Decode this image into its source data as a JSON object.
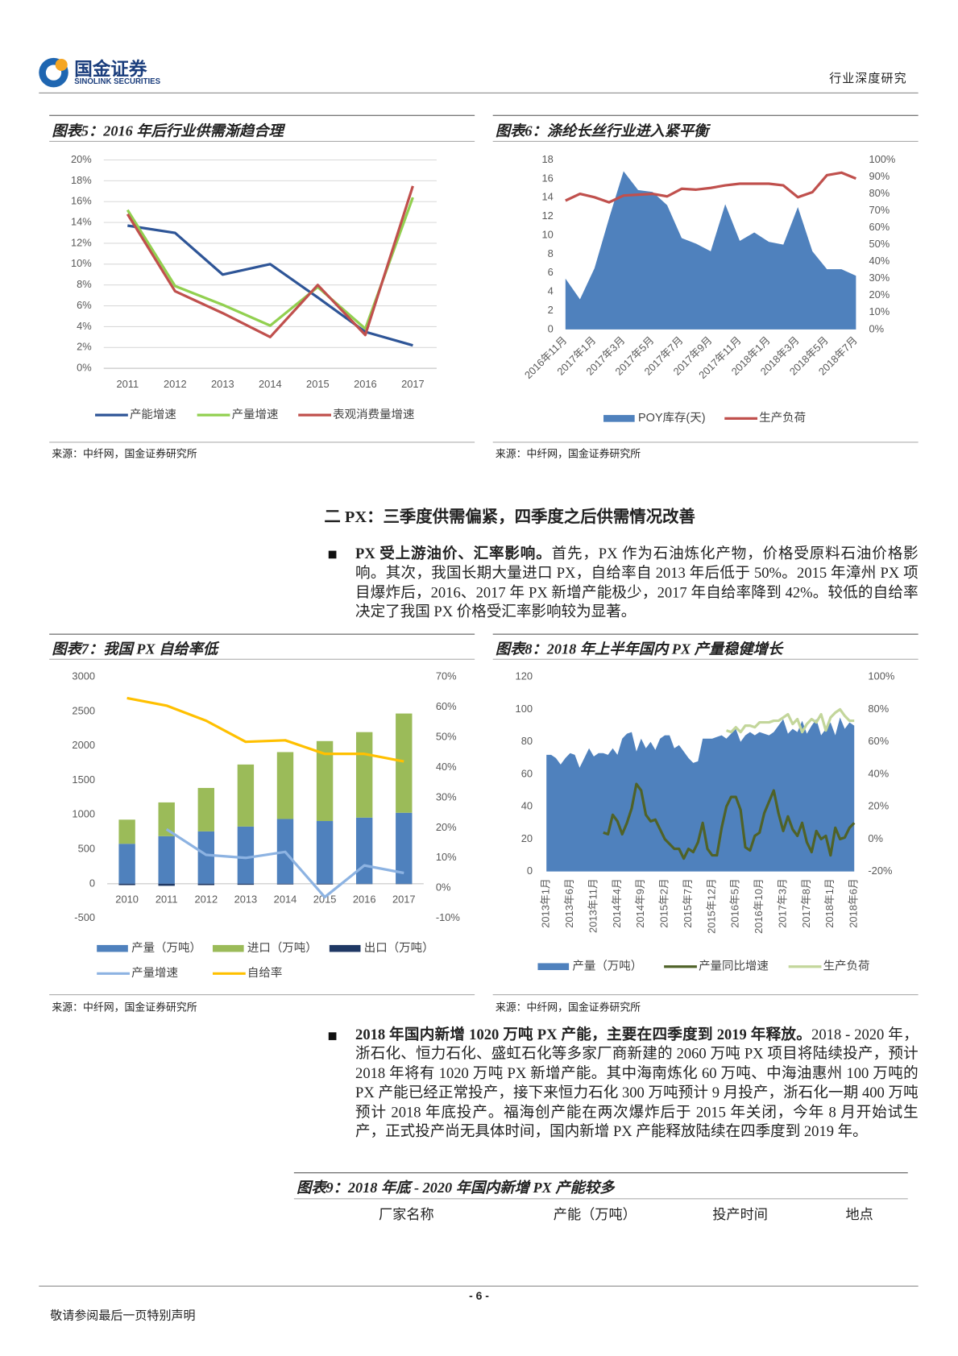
{
  "document": {
    "header": {
      "brand_cn": "国金证券",
      "brand_en": "SINOLINK SECURITIES",
      "category": "行业深度研究"
    },
    "section_title": "二 PX：三季度供需偏紧，四季度之后供需情况改善",
    "paragraphs": [
      {
        "lead": "PX 受上游油价、汇率影响。",
        "text": "首先，PX 作为石油炼化产物，价格受原料石油价格影响。其次，我国长期大量进口 PX，自给率自 2013 年后低于 50%。2015 年漳州 PX 项目爆炸后，2016、2017 年 PX 新增产能极少，2017 年自给率降到 42%。较低的自给率决定了我国 PX 价格受汇率影响较为显著。"
      },
      {
        "lead": "2018 年国内新增 1020 万吨 PX 产能，主要在四季度到 2019 年释放。",
        "text": "2018 - 2020 年，浙石化、恒力石化、盛虹石化等多家厂商新建的 2060 万吨 PX 项目将陆续投产，预计 2018 年将有 1020 万吨 PX 新增产能。其中海南炼化 60 万吨、中海油惠州 100 万吨的 PX 产能已经正常投产，接下来恒力石化 300 万吨预计 9 月投产，浙石化一期 400 万吨预计 2018 年底投产。福海创产能在两次爆炸后于 2015 年关闭，今年 8 月开始试生产，正式投产尚无具体时间，国内新增 PX 产能释放陆续在四季度到 2019 年。"
      }
    ],
    "table": {
      "title": "图表9：2018 年底 - 2020 年国内新增 PX 产能较多",
      "headers": [
        "厂家名称",
        "产能（万吨）",
        "投产时间",
        "地点"
      ]
    },
    "footer": {
      "page": "- 6 -",
      "notice": "敬请参阅最后一页特别声明"
    }
  },
  "chart_data": [
    {
      "type": "line",
      "title": "图表5：2016 年后行业供需渐趋合理",
      "source": "来源：中纤网，国金证券研究所",
      "categories": [
        "2011",
        "2012",
        "2013",
        "2014",
        "2015",
        "2016",
        "2017"
      ],
      "ylim": [
        0,
        20
      ],
      "yticks": [
        {
          "value": 0,
          "label": "0%"
        },
        {
          "value": 2,
          "label": "2%"
        },
        {
          "value": 4,
          "label": "4%"
        },
        {
          "value": 6,
          "label": "6%"
        },
        {
          "value": 8,
          "label": "8%"
        },
        {
          "value": 10,
          "label": "10%"
        },
        {
          "value": 12,
          "label": "12%"
        },
        {
          "value": 14,
          "label": "14%"
        },
        {
          "value": 16,
          "label": "16%"
        },
        {
          "value": 18,
          "label": "18%"
        },
        {
          "value": 20,
          "label": "20%"
        }
      ],
      "grid": true,
      "series": [
        {
          "name": "产能增速",
          "color": "#2e5597",
          "values": [
            13.7,
            13.0,
            9.0,
            10.0,
            6.8,
            3.5,
            2.2
          ]
        },
        {
          "name": "产量增速",
          "color": "#92d050",
          "values": [
            15.2,
            7.9,
            6.1,
            4.1,
            7.8,
            3.8,
            16.4
          ]
        },
        {
          "name": "表观消费量增速",
          "color": "#c0504d",
          "values": [
            14.8,
            7.4,
            5.3,
            3.0,
            8.0,
            3.2,
            17.5
          ]
        }
      ]
    },
    {
      "type": "combo",
      "title": "图表6：涤纶长丝行业进入紧平衡",
      "source": "来源：中纤网，国金证券研究所",
      "categories": [
        "2016年11月",
        null,
        "2017年1月",
        null,
        "2017年3月",
        null,
        "2017年5月",
        null,
        "2017年7月",
        null,
        "2017年9月",
        null,
        "2017年11月",
        null,
        "2018年1月",
        null,
        "2018年3月",
        null,
        "2018年5月",
        null,
        "2018年7月"
      ],
      "ylim": [
        0,
        18
      ],
      "yticks": [
        0,
        2,
        4,
        6,
        8,
        10,
        12,
        14,
        16,
        18
      ],
      "y2lim": [
        0,
        100
      ],
      "y2ticks": [
        {
          "value": 0,
          "label": "0%"
        },
        {
          "value": 10,
          "label": "10%"
        },
        {
          "value": 20,
          "label": "20%"
        },
        {
          "value": 30,
          "label": "30%"
        },
        {
          "value": 40,
          "label": "40%"
        },
        {
          "value": 50,
          "label": "50%"
        },
        {
          "value": 60,
          "label": "60%"
        },
        {
          "value": 70,
          "label": "70%"
        },
        {
          "value": 80,
          "label": "80%"
        },
        {
          "value": 90,
          "label": "90%"
        },
        {
          "value": 100,
          "label": "100%"
        }
      ],
      "grid": false,
      "series": [
        {
          "name": "POY库存(天)",
          "kind": "area",
          "color": "#4f81bd",
          "values": [
            5.4,
            3.2,
            6.5,
            11.8,
            16.8,
            14.8,
            14.6,
            13.2,
            9.7,
            9.1,
            8.3,
            13.3,
            9.4,
            10.3,
            9.3,
            9.0,
            13.0,
            8.3,
            6.4,
            6.4,
            5.7
          ]
        },
        {
          "name": "生产负荷",
          "kind": "line",
          "axis": "y2",
          "color": "#c0504d",
          "values": [
            76,
            80,
            78,
            75,
            79,
            79.5,
            80,
            78.5,
            83,
            82.5,
            83.5,
            85,
            86,
            86,
            86,
            85,
            78,
            81,
            91,
            92.5,
            89
          ]
        }
      ]
    },
    {
      "type": "combo",
      "title": "图表7：我国 PX 自给率低",
      "source": "来源：中纤网，国金证券研究所",
      "categories": [
        "2010",
        "2011",
        "2012",
        "2013",
        "2014",
        "2015",
        "2016",
        "2017"
      ],
      "ylim": [
        -500,
        3000
      ],
      "yticks": [
        -500,
        0,
        500,
        1000,
        1500,
        2000,
        2500,
        3000
      ],
      "y2lim": [
        -10,
        70
      ],
      "y2ticks": [
        {
          "value": -10,
          "label": "-10%"
        },
        {
          "value": 0,
          "label": "0%"
        },
        {
          "value": 10,
          "label": "10%"
        },
        {
          "value": 20,
          "label": "20%"
        },
        {
          "value": 30,
          "label": "30%"
        },
        {
          "value": 40,
          "label": "40%"
        },
        {
          "value": 50,
          "label": "50%"
        },
        {
          "value": 60,
          "label": "60%"
        },
        {
          "value": 70,
          "label": "70%"
        }
      ],
      "grid": false,
      "stacked": true,
      "series": [
        {
          "name": "产量（万吨）",
          "kind": "bar",
          "color": "#4f81bd",
          "values": [
            580,
            690,
            760,
            830,
            940,
            910,
            960,
            1030
          ]
        },
        {
          "name": "进口（万吨）",
          "kind": "bar",
          "color": "#9bbb59",
          "values": [
            350,
            490,
            630,
            900,
            970,
            1160,
            1240,
            1440
          ]
        },
        {
          "name": "出口（万吨）",
          "kind": "bar",
          "color": "#1f3864",
          "values": [
            -20,
            -30,
            -20,
            -15,
            -10,
            -10,
            -5,
            -5
          ]
        },
        {
          "name": "产量增速",
          "kind": "line",
          "axis": "y2",
          "color": "#8db3e2",
          "values": [
            null,
            19.5,
            11,
            10,
            12,
            -3,
            7.5,
            5
          ]
        },
        {
          "name": "自给率",
          "kind": "line",
          "axis": "y2",
          "color": "#ffc000",
          "values": [
            63,
            60.5,
            55.5,
            48.5,
            49,
            44.5,
            44.5,
            42
          ]
        }
      ]
    },
    {
      "type": "combo",
      "title": "图表8：2018 年上半年国内 PX 产量稳健增长",
      "source": "来源：中纤网，国金证券研究所",
      "categories": [
        "2013年1月",
        null,
        null,
        null,
        null,
        "2013年6月",
        null,
        null,
        null,
        null,
        "2013年11月",
        null,
        null,
        null,
        null,
        "2014年4月",
        null,
        null,
        null,
        null,
        "2014年9月",
        null,
        null,
        null,
        null,
        "2015年2月",
        null,
        null,
        null,
        null,
        "2015年7月",
        null,
        null,
        null,
        null,
        "2015年12月",
        null,
        null,
        null,
        null,
        "2016年5月",
        null,
        null,
        null,
        null,
        "2016年10月",
        null,
        null,
        null,
        null,
        "2017年3月",
        null,
        null,
        null,
        null,
        "2017年8月",
        null,
        null,
        null,
        null,
        "2018年1月",
        null,
        null,
        null,
        null,
        "2018年6月"
      ],
      "ylim": [
        0,
        120
      ],
      "yticks": [
        0,
        20,
        40,
        60,
        80,
        100,
        120
      ],
      "y2lim": [
        -20,
        100
      ],
      "y2ticks": [
        {
          "value": -20,
          "label": "-20%"
        },
        {
          "value": 0,
          "label": "0%"
        },
        {
          "value": 20,
          "label": "20%"
        },
        {
          "value": 40,
          "label": "40%"
        },
        {
          "value": 60,
          "label": "60%"
        },
        {
          "value": 80,
          "label": "80%"
        },
        {
          "value": 100,
          "label": "100%"
        }
      ],
      "grid": false,
      "series": [
        {
          "name": "产量（万吨）",
          "kind": "area",
          "color": "#4f81bd",
          "values": [
            72,
            72,
            70,
            66,
            70,
            73,
            72,
            64,
            70,
            76,
            71,
            73,
            73,
            72,
            76,
            72,
            82,
            85,
            86,
            74,
            82,
            76,
            80,
            75,
            82,
            84,
            84,
            76,
            78,
            74,
            70,
            67,
            68,
            82,
            82,
            82,
            83,
            84,
            82,
            85,
            88,
            80,
            84,
            86,
            84,
            86,
            85,
            84,
            86,
            90,
            94,
            85,
            88,
            86,
            93,
            85,
            90,
            94,
            84,
            88,
            92,
            84,
            95,
            88,
            92,
            90
          ]
        },
        {
          "name": "产量同比增速",
          "kind": "line",
          "axis": "y2",
          "color": "#4f6228",
          "values": [
            null,
            null,
            null,
            null,
            null,
            null,
            null,
            null,
            null,
            null,
            null,
            null,
            4,
            3,
            15,
            11,
            3,
            10,
            19,
            34,
            30,
            15,
            11,
            12,
            6,
            0,
            -3,
            -6,
            -6,
            -12,
            -6,
            -8,
            -2,
            10,
            -6,
            -10,
            -10,
            7,
            20,
            26,
            26,
            18,
            -5,
            -7,
            2,
            4,
            16,
            23,
            30,
            16,
            5,
            14,
            6,
            2,
            10,
            -2,
            -8,
            5,
            0,
            2,
            -10,
            7,
            0,
            1,
            7,
            10
          ]
        },
        {
          "name": "生产负荷",
          "kind": "line",
          "axis": "y2",
          "color": "#c3d69b",
          "values": [
            null,
            null,
            null,
            null,
            null,
            null,
            null,
            null,
            null,
            null,
            null,
            null,
            null,
            null,
            null,
            null,
            null,
            null,
            null,
            null,
            null,
            null,
            null,
            null,
            null,
            null,
            null,
            null,
            null,
            null,
            null,
            null,
            null,
            null,
            null,
            null,
            null,
            null,
            67,
            66,
            69,
            66,
            70,
            70,
            69,
            72,
            72,
            72,
            73,
            73,
            75,
            77,
            71,
            74,
            66,
            71,
            74,
            72,
            77,
            67,
            75,
            78,
            80,
            76,
            73,
            73
          ]
        }
      ]
    }
  ]
}
